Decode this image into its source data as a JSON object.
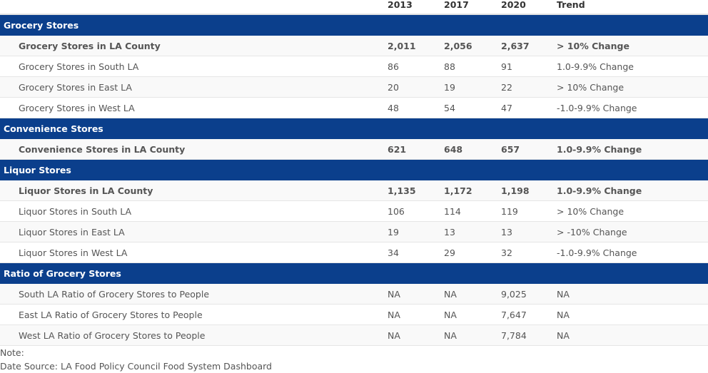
{
  "header": {
    "col_name": "",
    "y2013": "2013",
    "y2017": "2017",
    "y2020": "2020",
    "trend": "Trend"
  },
  "sections": [
    {
      "title": "Grocery Stores",
      "rows": [
        {
          "name": "Grocery Stores in LA County",
          "v2013": "2,011",
          "v2017": "2,056",
          "v2020": "2,637",
          "trend": "> 10% Change",
          "bold": true
        },
        {
          "name": "Grocery Stores in South LA",
          "v2013": "86",
          "v2017": "88",
          "v2020": "91",
          "trend": "1.0-9.9% Change",
          "bold": false
        },
        {
          "name": "Grocery Stores in East LA",
          "v2013": "20",
          "v2017": "19",
          "v2020": "22",
          "trend": "> 10% Change",
          "bold": false
        },
        {
          "name": "Grocery Stores in West LA",
          "v2013": "48",
          "v2017": "54",
          "v2020": "47",
          "trend": "-1.0-9.9% Change",
          "bold": false
        }
      ]
    },
    {
      "title": "Convenience Stores",
      "rows": [
        {
          "name": "Convenience Stores in LA County",
          "v2013": "621",
          "v2017": "648",
          "v2020": "657",
          "trend": "1.0-9.9% Change",
          "bold": true
        }
      ]
    },
    {
      "title": "Liquor Stores",
      "rows": [
        {
          "name": "Liquor Stores in LA County",
          "v2013": "1,135",
          "v2017": "1,172",
          "v2020": "1,198",
          "trend": "1.0-9.9% Change",
          "bold": true
        },
        {
          "name": "Liquor Stores in South LA",
          "v2013": "106",
          "v2017": "114",
          "v2020": "119",
          "trend": "> 10% Change",
          "bold": false
        },
        {
          "name": "Liquor Stores in East LA",
          "v2013": "19",
          "v2017": "13",
          "v2020": "13",
          "trend": "> -10% Change",
          "bold": false
        },
        {
          "name": "Liquor Stores in West LA",
          "v2013": "34",
          "v2017": "29",
          "v2020": "32",
          "trend": "-1.0-9.9% Change",
          "bold": false
        }
      ]
    },
    {
      "title": "Ratio of Grocery Stores",
      "rows": [
        {
          "name": "South LA Ratio of Grocery Stores to People",
          "v2013": "NA",
          "v2017": "NA",
          "v2020": "9,025",
          "trend": "NA",
          "bold": false
        },
        {
          "name": "East LA Ratio of Grocery Stores to People",
          "v2013": "NA",
          "v2017": "NA",
          "v2020": "7,647",
          "trend": "NA",
          "bold": false
        },
        {
          "name": "West LA Ratio of Grocery Stores to People",
          "v2013": "NA",
          "v2017": "NA",
          "v2020": "7,784",
          "trend": "NA",
          "bold": false
        }
      ]
    }
  ],
  "notes": {
    "note": "Note:",
    "source": "Date Source: LA Food Policy Council Food System Dashboard"
  },
  "colors": {
    "section_bg": "#0b3f8c",
    "section_text": "#ffffff",
    "row_alt": "#f9f9f9"
  }
}
